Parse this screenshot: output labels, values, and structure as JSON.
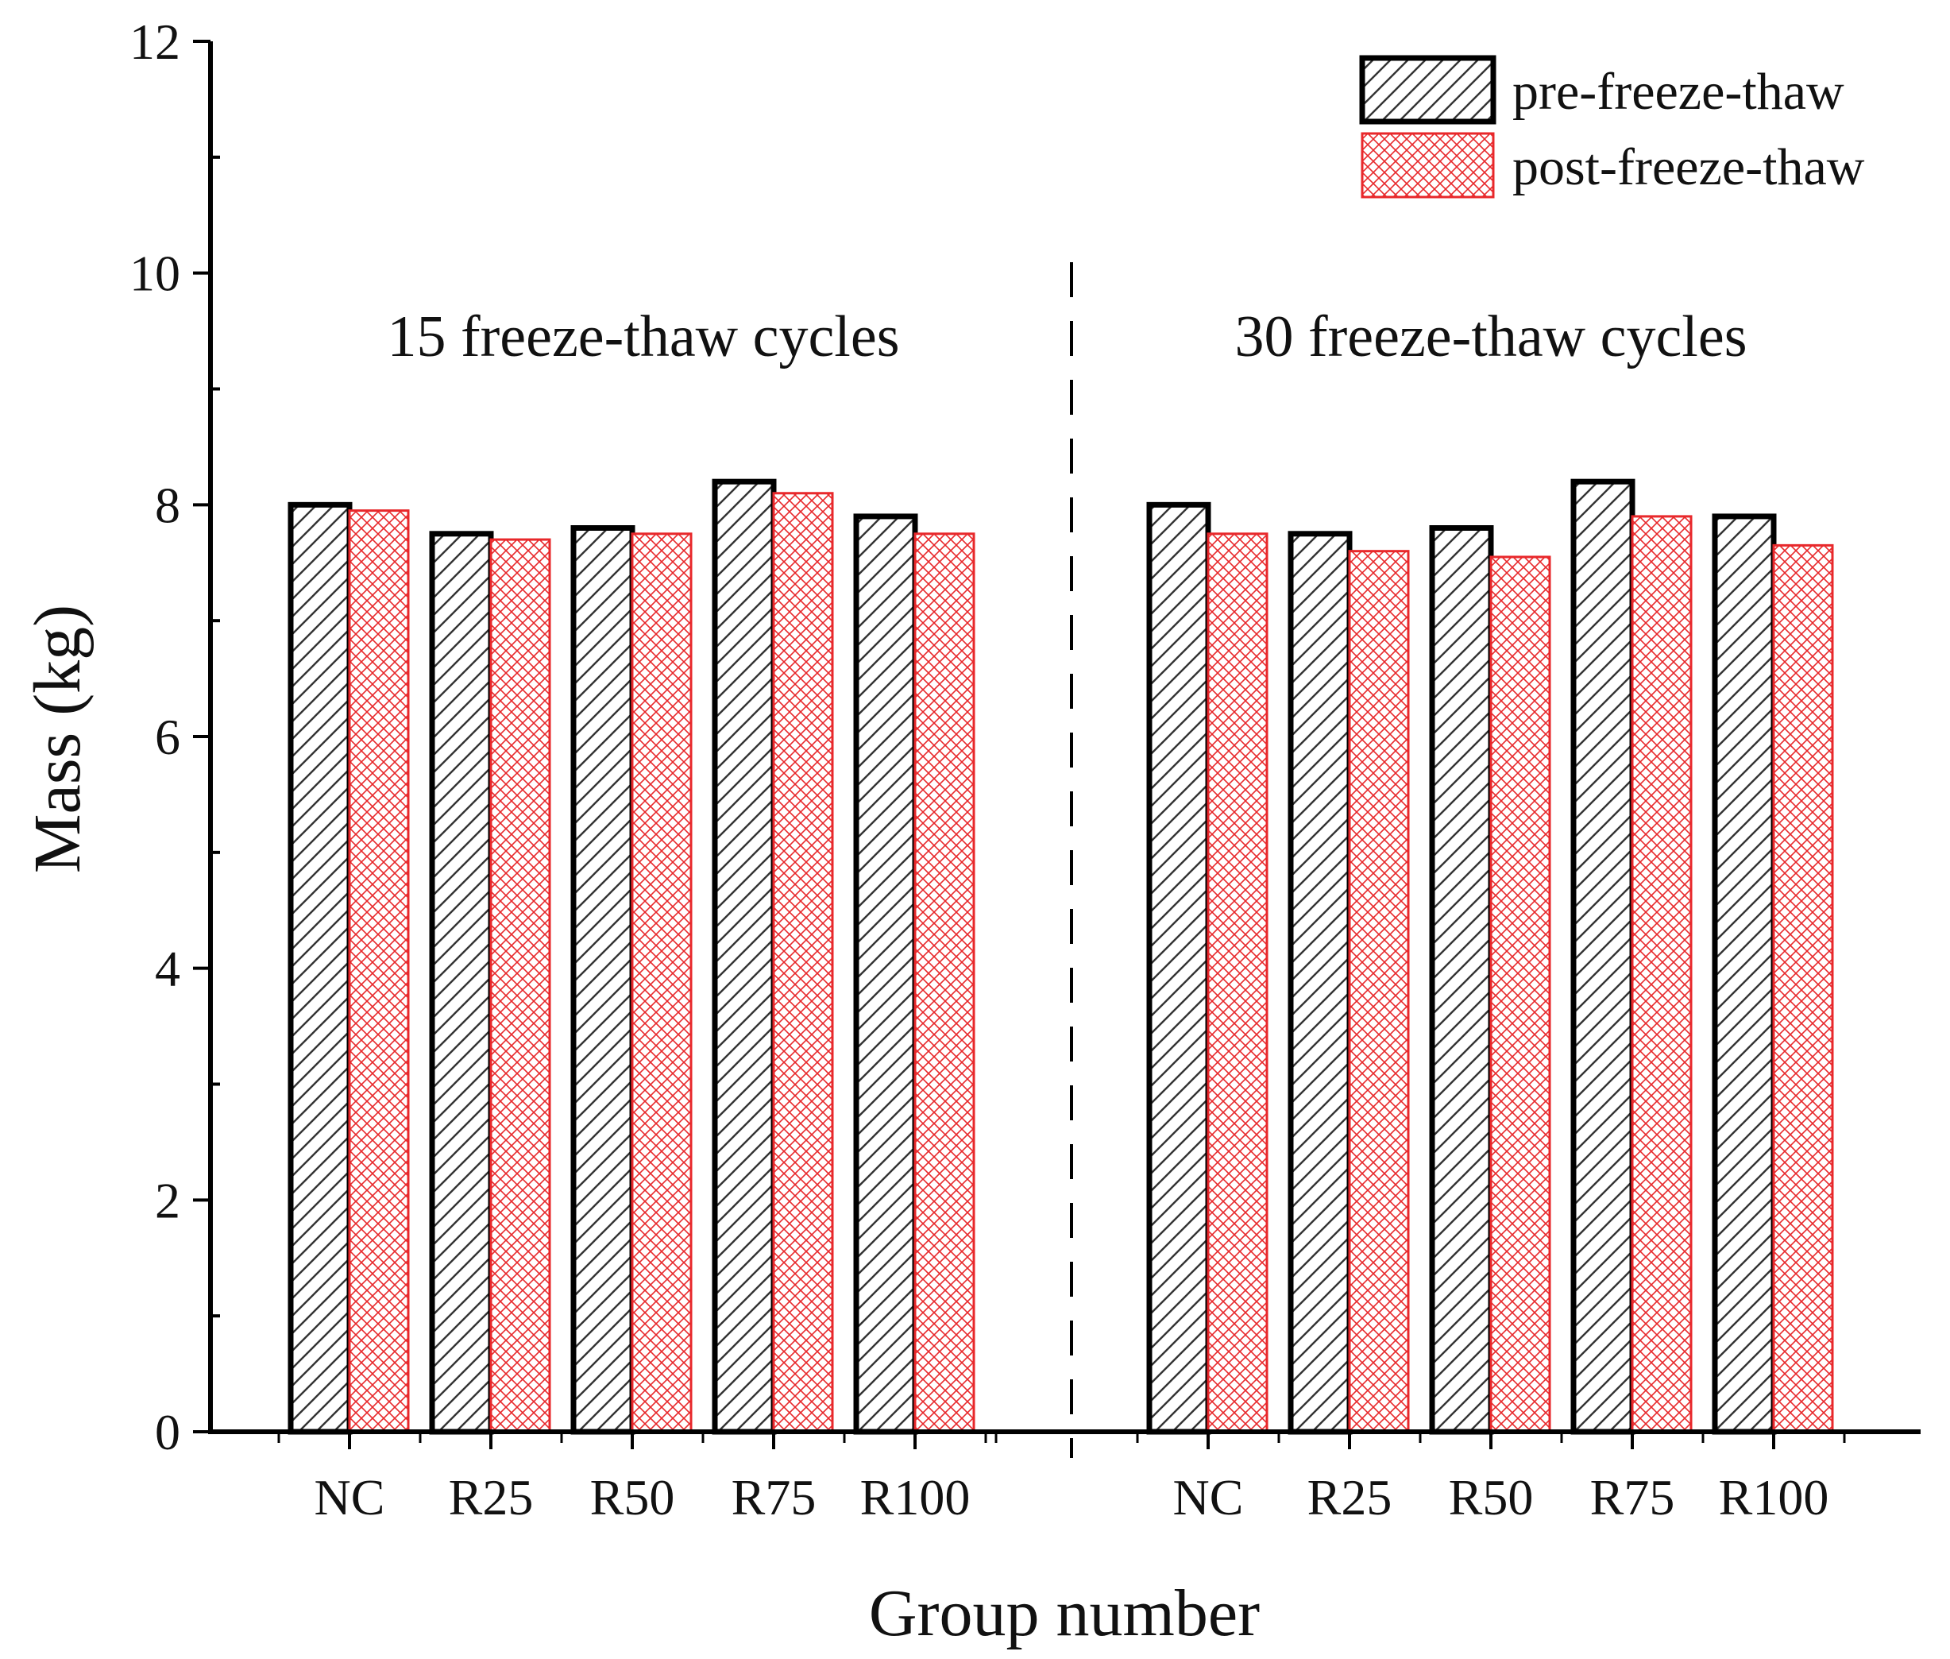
{
  "chart_data": {
    "type": "bar",
    "xlabel": "Group number",
    "ylabel": "Mass (kg)",
    "ylim": [
      0,
      12
    ],
    "y_major_ticks": [
      0,
      2,
      4,
      6,
      8,
      10,
      12
    ],
    "y_minor_step": 1,
    "groups": [
      {
        "title": "15 freeze-thaw cycles",
        "categories": [
          "NC",
          "R25",
          "R50",
          "R75",
          "R100"
        ],
        "series": [
          {
            "name": "pre-freeze-thaw",
            "values": [
              8.0,
              7.75,
              7.8,
              8.2,
              7.9
            ]
          },
          {
            "name": "post-freeze-thaw",
            "values": [
              7.95,
              7.7,
              7.75,
              8.1,
              7.75
            ]
          }
        ]
      },
      {
        "title": "30 freeze-thaw cycles",
        "categories": [
          "NC",
          "R25",
          "R50",
          "R75",
          "R100"
        ],
        "series": [
          {
            "name": "pre-freeze-thaw",
            "values": [
              8.0,
              7.75,
              7.8,
              8.2,
              7.9
            ]
          },
          {
            "name": "post-freeze-thaw",
            "values": [
              7.75,
              7.6,
              7.55,
              7.9,
              7.65
            ]
          }
        ]
      }
    ],
    "legend": {
      "position": "top-right",
      "entries": [
        {
          "name": "pre-freeze-thaw",
          "pattern": "hatch",
          "color": "#000000"
        },
        {
          "name": "post-freeze-thaw",
          "pattern": "crosshatch",
          "color": "#e8282b"
        }
      ]
    },
    "colors": {
      "pre": "#000000",
      "post": "#e8282b",
      "axis": "#000000"
    }
  }
}
